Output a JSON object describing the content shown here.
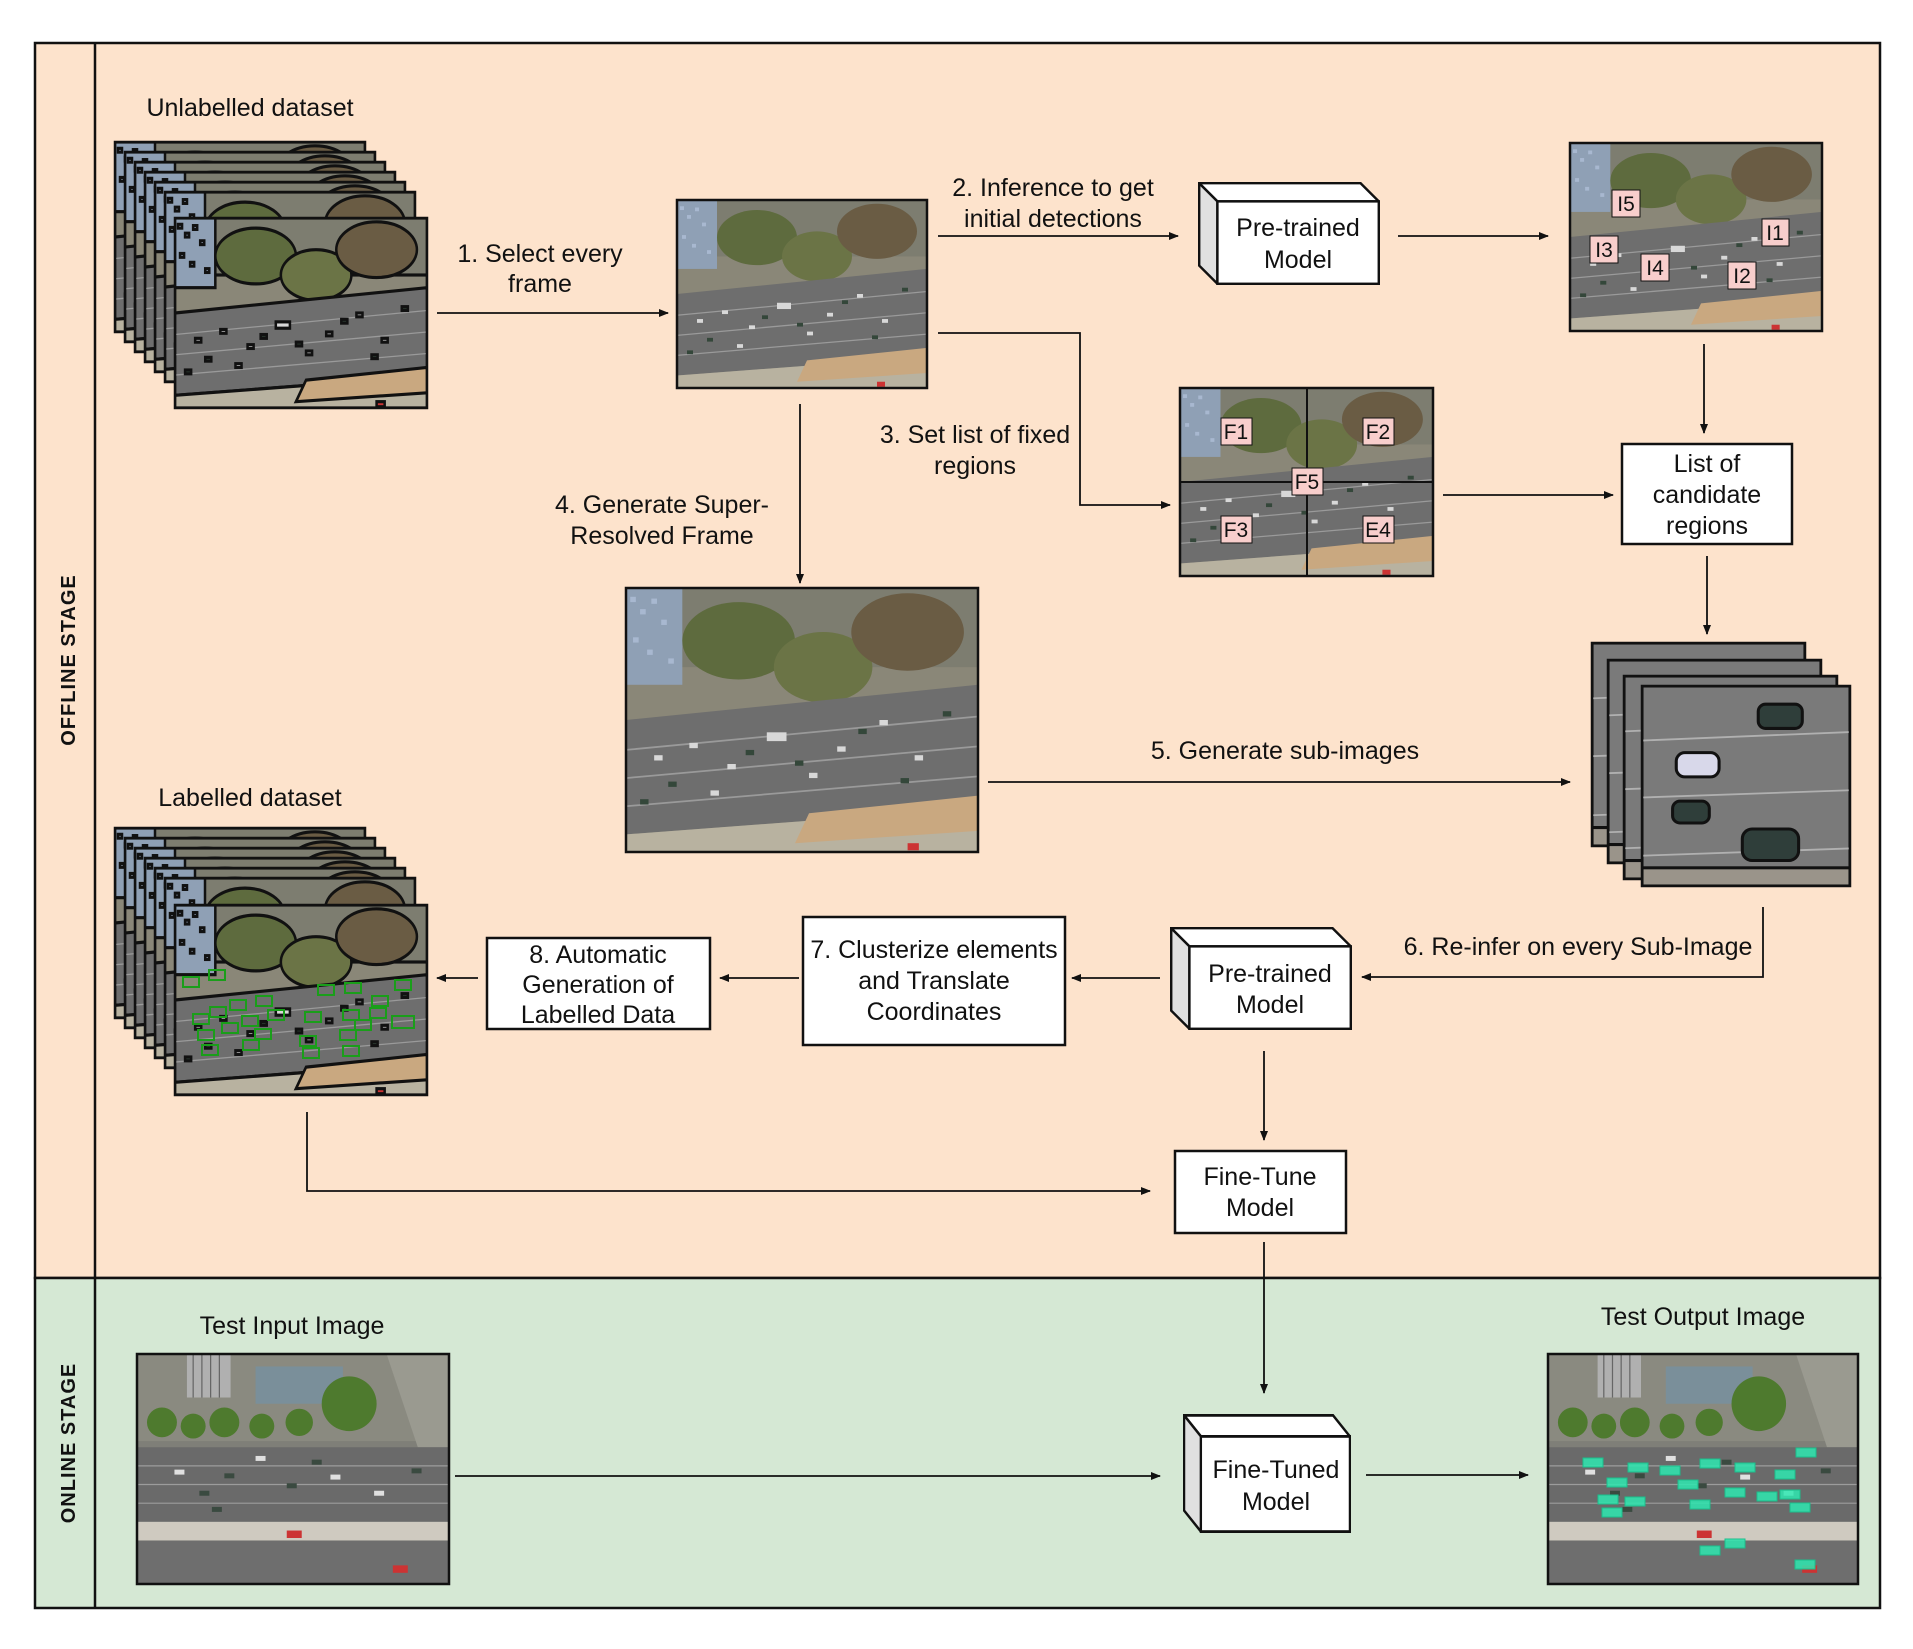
{
  "stages": {
    "offline": "OFFLINE STAGE",
    "online": "ONLINE STAGE"
  },
  "colors": {
    "offline_bg": "#fde3cc",
    "online_bg": "#d5e8d4",
    "tag_fill": "#f8cecc",
    "detection_box": "#1a9e1a",
    "output_box": "#2ee8b0",
    "road": "#6e6e6e",
    "trees": "#5c6a3c",
    "dirt": "#c9a880"
  },
  "datasets": {
    "unlabelled": "Unlabelled dataset",
    "labelled": "Labelled dataset"
  },
  "steps": {
    "s1": [
      "1. Select every",
      "frame"
    ],
    "s2": [
      "2. Inference to get",
      "initial detections"
    ],
    "s3": [
      "3. Set list of fixed",
      "regions"
    ],
    "s4": [
      "4. Generate Super-",
      "Resolved Frame"
    ],
    "s5": [
      "5. Generate sub-images"
    ],
    "s6": [
      "6. Re-infer on every Sub-Image"
    ],
    "s7": [
      "7. Clusterize elements",
      "and Translate",
      "Coordinates"
    ],
    "s8": [
      "8. Automatic",
      "Generation of",
      "Labelled Data"
    ]
  },
  "boxes": {
    "pretrained_1": [
      "Pre-trained",
      "Model"
    ],
    "pretrained_2": [
      "Pre-trained",
      "Model"
    ],
    "candidates": [
      "List of",
      "candidate",
      "regions"
    ],
    "finetune": [
      "Fine-Tune",
      "Model"
    ],
    "finetuned": [
      "Fine-Tuned",
      "Model"
    ]
  },
  "initial_tags": [
    "I5",
    "I1",
    "I3",
    "I4",
    "I2"
  ],
  "fixed_tags": [
    "F1",
    "F2",
    "F5",
    "F3",
    "E4"
  ],
  "online": {
    "test_input": "Test Input Image",
    "test_output": "Test Output Image"
  }
}
